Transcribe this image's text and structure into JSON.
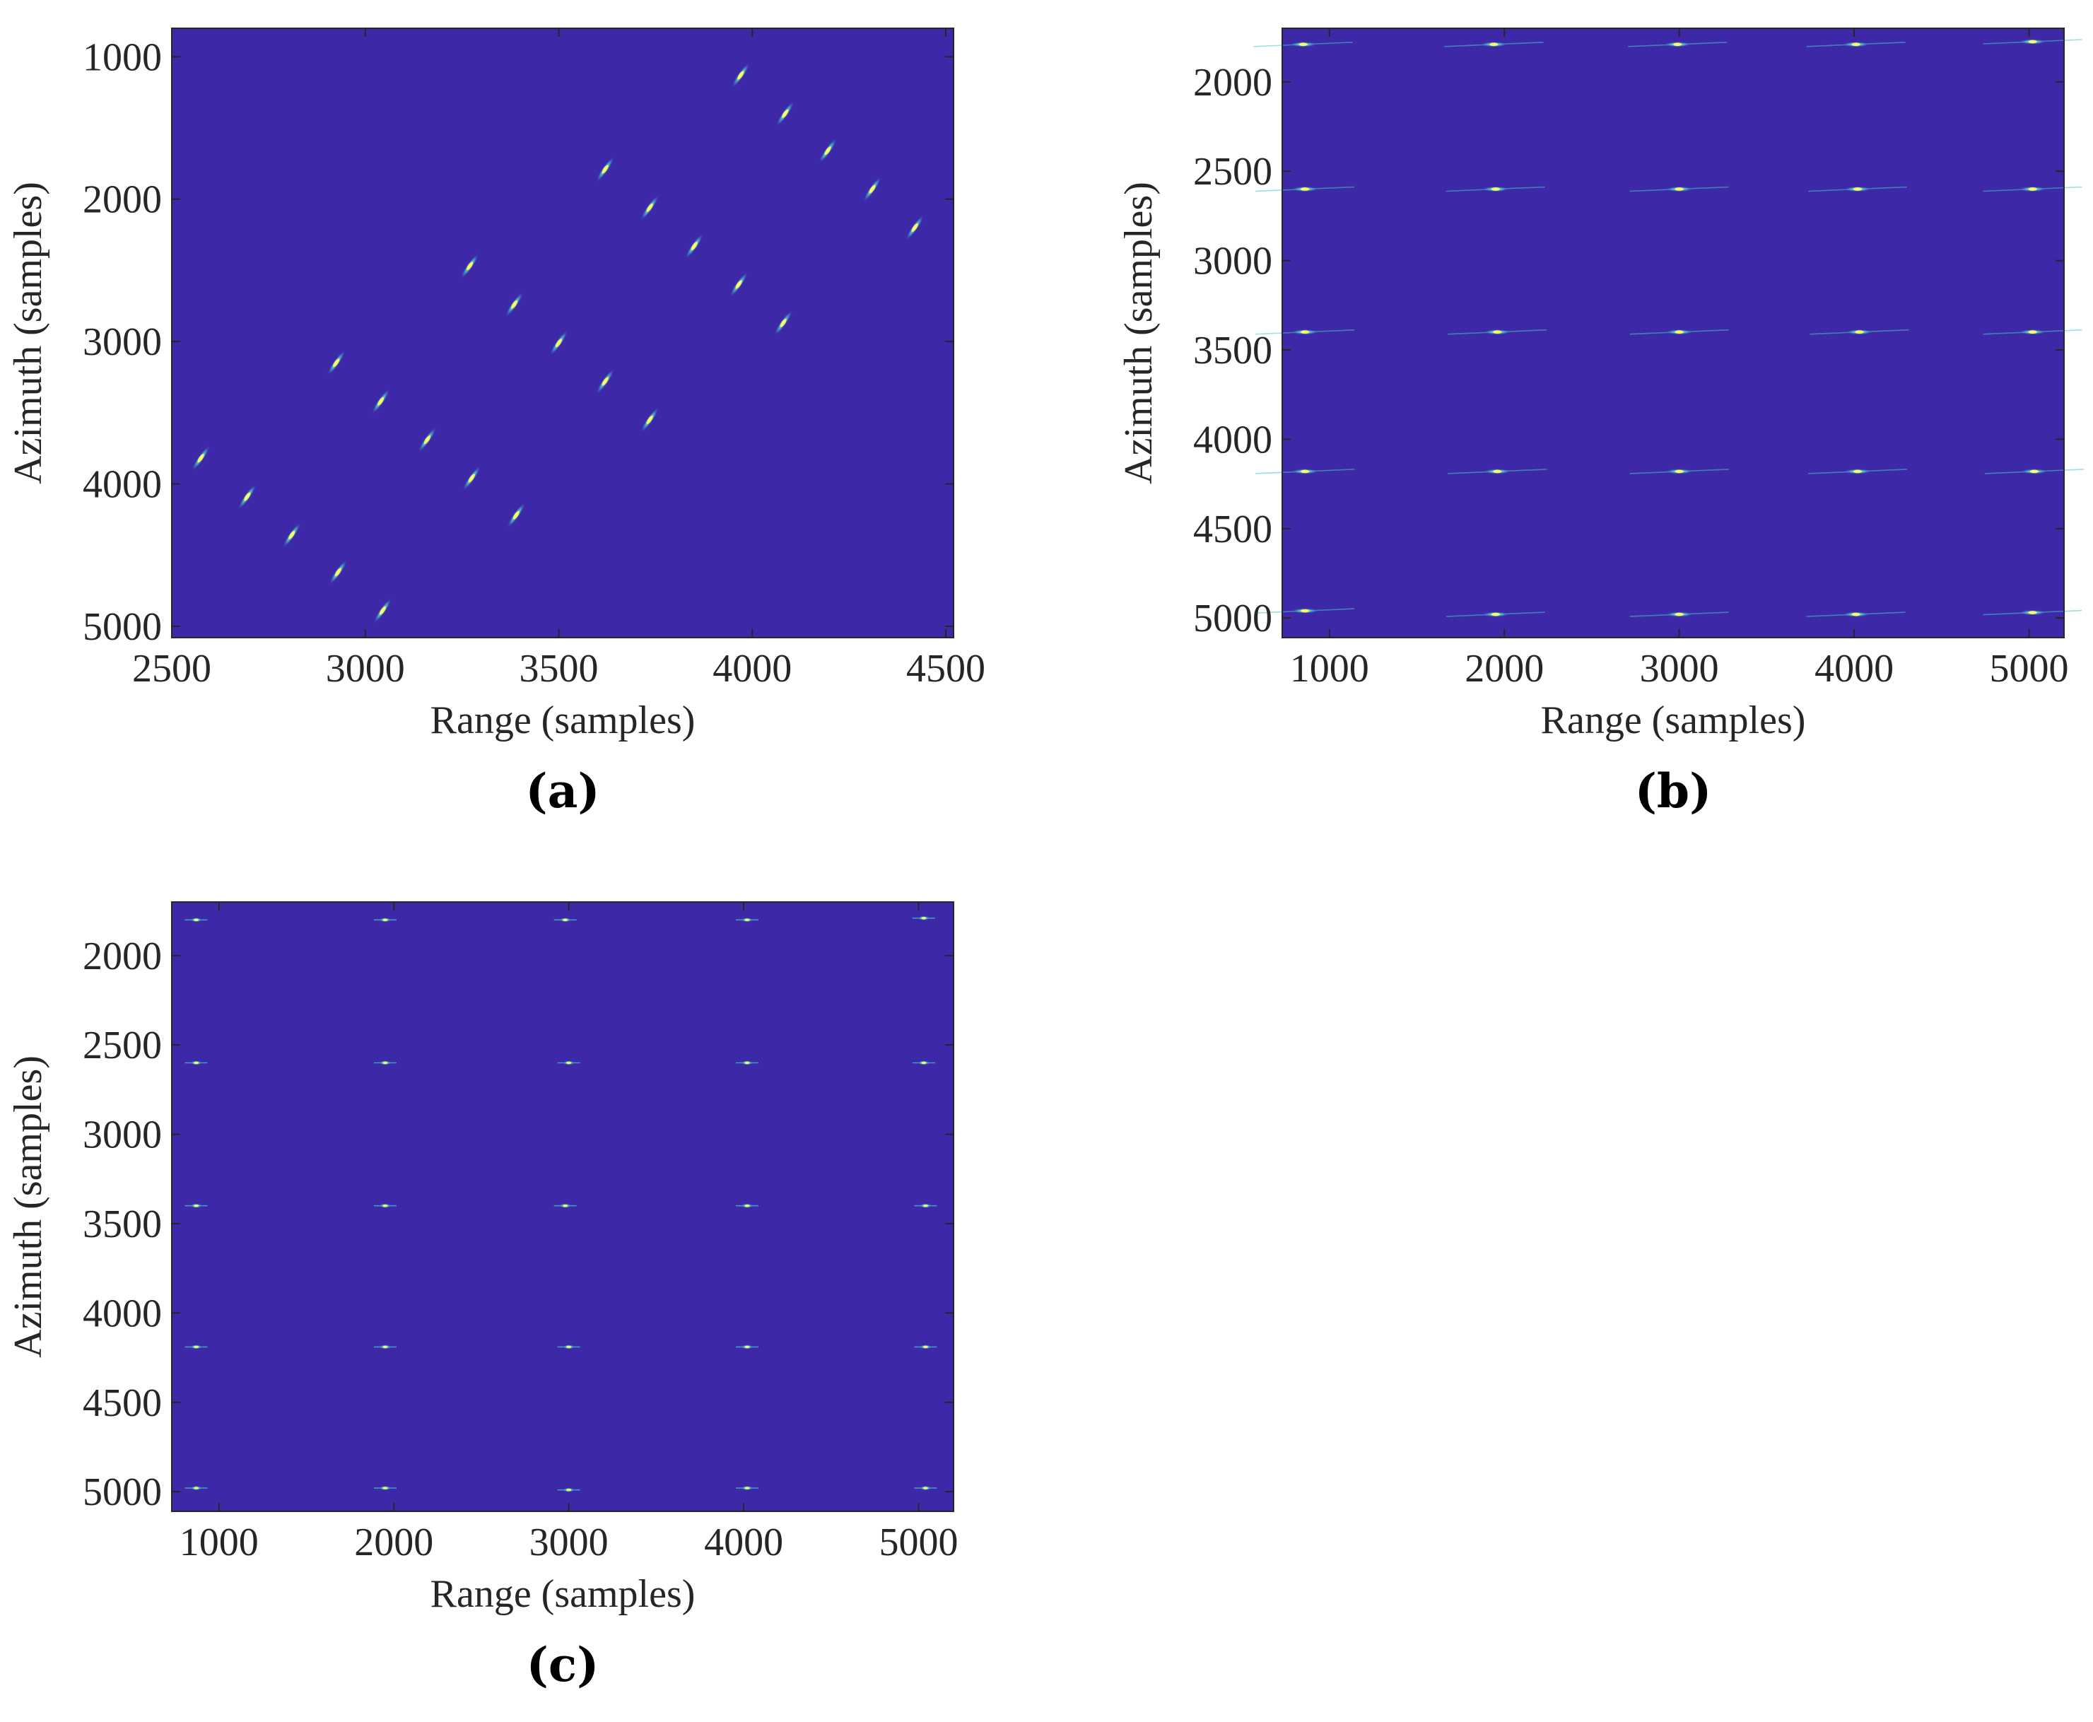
{
  "colors": {
    "background": "#3d28a7",
    "spot_core": "#ffff66",
    "spot_glow": "#49c6c6",
    "axis": "#262626"
  },
  "chart_data": [
    {
      "type": "heatmap",
      "panel_label": "(a)",
      "xlabel": "Range (samples)",
      "ylabel": "Azimuth (samples)",
      "xlim": [
        2500,
        4520
      ],
      "ylim": [
        800,
        5080
      ],
      "y_reversed": true,
      "xticks": [
        2500,
        3000,
        3500,
        4000,
        4500
      ],
      "yticks": [
        1000,
        2000,
        3000,
        4000,
        5000
      ],
      "tick_labels_x": [
        "2500",
        "3000",
        "3500",
        "4000",
        "4500"
      ],
      "tick_labels_y": [
        "1000",
        "2000",
        "3000",
        "4000",
        "5000"
      ],
      "spot_style": "diagonal",
      "points": [
        {
          "x": 3970,
          "y": 1130
        },
        {
          "x": 4085,
          "y": 1400
        },
        {
          "x": 4195,
          "y": 1660
        },
        {
          "x": 4310,
          "y": 1930
        },
        {
          "x": 4420,
          "y": 2200
        },
        {
          "x": 3620,
          "y": 1790
        },
        {
          "x": 3735,
          "y": 2060
        },
        {
          "x": 3850,
          "y": 2330
        },
        {
          "x": 3965,
          "y": 2600
        },
        {
          "x": 4080,
          "y": 2870
        },
        {
          "x": 3270,
          "y": 2470
        },
        {
          "x": 3385,
          "y": 2740
        },
        {
          "x": 3500,
          "y": 3010
        },
        {
          "x": 3620,
          "y": 3280
        },
        {
          "x": 3735,
          "y": 3550
        },
        {
          "x": 2925,
          "y": 3150
        },
        {
          "x": 3040,
          "y": 3420
        },
        {
          "x": 3160,
          "y": 3690
        },
        {
          "x": 3275,
          "y": 3960
        },
        {
          "x": 3390,
          "y": 4220
        },
        {
          "x": 2575,
          "y": 3820
        },
        {
          "x": 2695,
          "y": 4090
        },
        {
          "x": 2810,
          "y": 4360
        },
        {
          "x": 2930,
          "y": 4620
        },
        {
          "x": 3045,
          "y": 4890
        }
      ]
    },
    {
      "type": "heatmap",
      "panel_label": "(b)",
      "xlabel": "Range (samples)",
      "ylabel": "Azimuth (samples)",
      "xlim": [
        730,
        5200
      ],
      "ylim": [
        1700,
        5110
      ],
      "y_reversed": true,
      "xticks": [
        1000,
        2000,
        3000,
        4000,
        5000
      ],
      "yticks": [
        2000,
        2500,
        3000,
        3500,
        4000,
        4500,
        5000
      ],
      "tick_labels_x": [
        "1000",
        "2000",
        "3000",
        "4000",
        "5000"
      ],
      "tick_labels_y": [
        "2000",
        "2500",
        "3000",
        "3500",
        "4000",
        "4500",
        "5000"
      ],
      "spot_style": "streak",
      "points": [
        {
          "x": 850,
          "y": 1790
        },
        {
          "x": 1940,
          "y": 1790
        },
        {
          "x": 2990,
          "y": 1790
        },
        {
          "x": 4010,
          "y": 1790
        },
        {
          "x": 5020,
          "y": 1775
        },
        {
          "x": 860,
          "y": 2600
        },
        {
          "x": 1950,
          "y": 2600
        },
        {
          "x": 3000,
          "y": 2600
        },
        {
          "x": 4020,
          "y": 2600
        },
        {
          "x": 5020,
          "y": 2600
        },
        {
          "x": 860,
          "y": 3400
        },
        {
          "x": 1960,
          "y": 3400
        },
        {
          "x": 3000,
          "y": 3400
        },
        {
          "x": 4030,
          "y": 3400
        },
        {
          "x": 5020,
          "y": 3400
        },
        {
          "x": 860,
          "y": 4180
        },
        {
          "x": 1960,
          "y": 4180
        },
        {
          "x": 3000,
          "y": 4180
        },
        {
          "x": 4020,
          "y": 4180
        },
        {
          "x": 5030,
          "y": 4180
        },
        {
          "x": 860,
          "y": 4960
        },
        {
          "x": 1950,
          "y": 4980
        },
        {
          "x": 3000,
          "y": 4980
        },
        {
          "x": 4010,
          "y": 4980
        },
        {
          "x": 5020,
          "y": 4970
        }
      ]
    },
    {
      "type": "heatmap",
      "panel_label": "(c)",
      "xlabel": "Range (samples)",
      "ylabel": "Azimuth (samples)",
      "xlim": [
        730,
        5200
      ],
      "ylim": [
        1700,
        5110
      ],
      "y_reversed": true,
      "xticks": [
        1000,
        2000,
        3000,
        4000,
        5000
      ],
      "yticks": [
        2000,
        2500,
        3000,
        3500,
        4000,
        4500,
        5000
      ],
      "tick_labels_x": [
        "1000",
        "2000",
        "3000",
        "4000",
        "5000"
      ],
      "tick_labels_y": [
        "2000",
        "2500",
        "3000",
        "3500",
        "4000",
        "4500",
        "5000"
      ],
      "spot_style": "point",
      "points": [
        {
          "x": 870,
          "y": 1800
        },
        {
          "x": 1950,
          "y": 1800
        },
        {
          "x": 2980,
          "y": 1800
        },
        {
          "x": 4020,
          "y": 1800
        },
        {
          "x": 5030,
          "y": 1790
        },
        {
          "x": 870,
          "y": 2600
        },
        {
          "x": 1950,
          "y": 2600
        },
        {
          "x": 3000,
          "y": 2600
        },
        {
          "x": 4020,
          "y": 2600
        },
        {
          "x": 5030,
          "y": 2600
        },
        {
          "x": 870,
          "y": 3400
        },
        {
          "x": 1950,
          "y": 3400
        },
        {
          "x": 2980,
          "y": 3400
        },
        {
          "x": 4020,
          "y": 3400
        },
        {
          "x": 5040,
          "y": 3400
        },
        {
          "x": 870,
          "y": 4190
        },
        {
          "x": 1950,
          "y": 4190
        },
        {
          "x": 3000,
          "y": 4190
        },
        {
          "x": 4020,
          "y": 4190
        },
        {
          "x": 5040,
          "y": 4190
        },
        {
          "x": 870,
          "y": 4980
        },
        {
          "x": 1950,
          "y": 4980
        },
        {
          "x": 3000,
          "y": 4990
        },
        {
          "x": 4020,
          "y": 4980
        },
        {
          "x": 5040,
          "y": 4980
        }
      ]
    }
  ]
}
